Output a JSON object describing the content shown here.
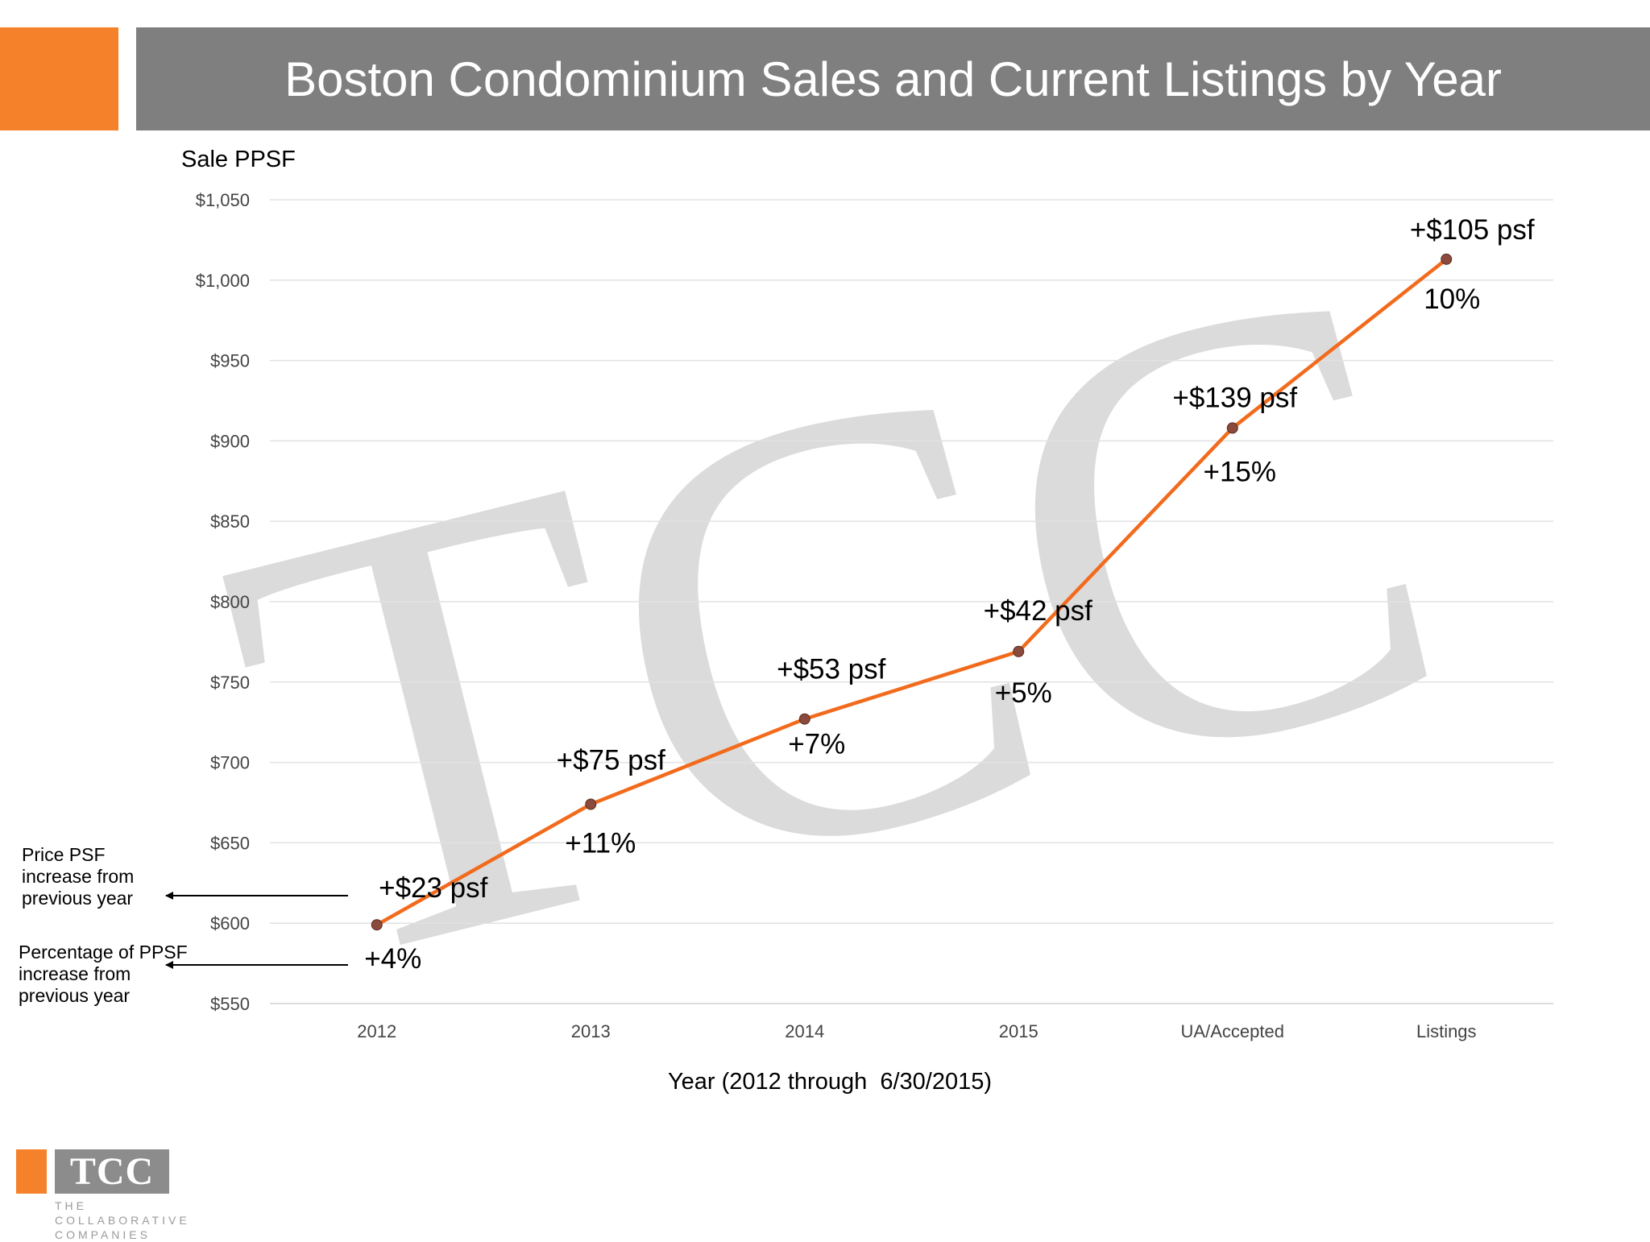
{
  "header": {
    "title": "Boston Condominium Sales and Current Listings by Year",
    "accent_color": "#F5822A",
    "bar_color": "#7F7F7F"
  },
  "notes": {
    "price_line1": "Price PSF",
    "price_line2": "increase from",
    "price_line3": "previous year",
    "pct_line1": "Percentage of PPSF",
    "pct_line2": "increase from",
    "pct_line3": "previous year"
  },
  "logo": {
    "mark": "TCC",
    "line1": "THE COLLABORATIVE",
    "line2": "COMPANIES"
  },
  "watermark": "TCC",
  "chart_data": {
    "type": "line",
    "ylabel": "Sale PPSF",
    "xlabel": "Year (2012 through  6/30/2015)",
    "ylim": [
      550,
      1050
    ],
    "yticks": [
      550,
      600,
      650,
      700,
      750,
      800,
      850,
      900,
      950,
      1000,
      1050
    ],
    "ytick_labels": [
      "$550",
      "$600",
      "$650",
      "$700",
      "$750",
      "$800",
      "$850",
      "$900",
      "$950",
      "$1,000",
      "$1,050"
    ],
    "categories": [
      "2012",
      "2013",
      "2014",
      "2015",
      "UA/Accepted",
      "Listings"
    ],
    "values": [
      599,
      674,
      727,
      769,
      908,
      1013
    ],
    "price_increase_labels": [
      "+$23 psf",
      "+$75 psf",
      "+$53 psf",
      "+$42 psf",
      "+$139 psf",
      "+$105 psf"
    ],
    "percent_labels": [
      "+4%",
      "+11%",
      "+7%",
      "+5%",
      "+15%",
      "10%"
    ],
    "line_color": "#F26B1D",
    "marker_color": "#8B4A3C",
    "grid": true
  }
}
